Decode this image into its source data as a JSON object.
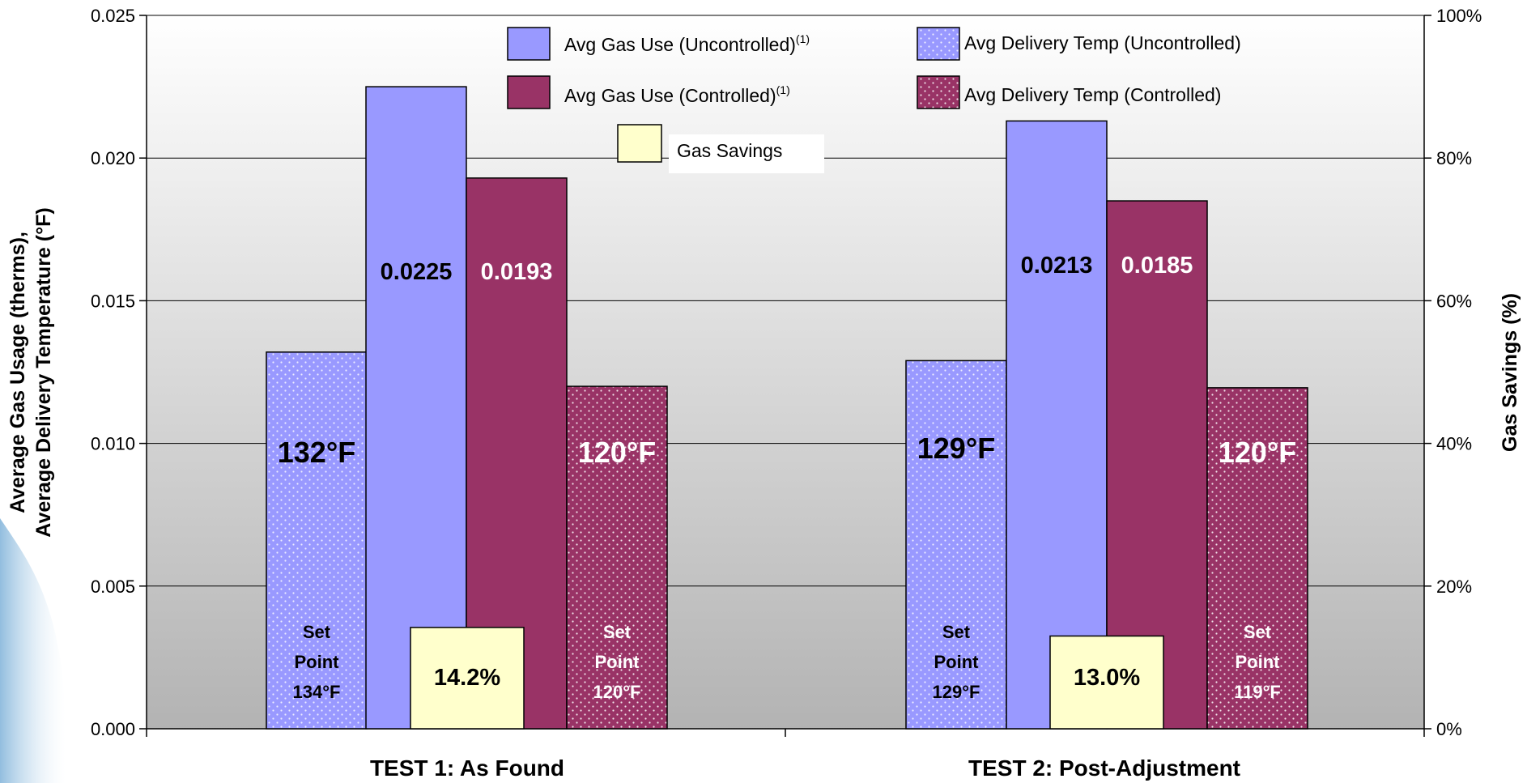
{
  "chart_data": {
    "type": "bar",
    "categories": [
      "TEST 1: As Found",
      "TEST 2: Post-Adjustment"
    ],
    "ylabel_line1": "Average Gas Usage (therms),",
    "ylabel_line2": "Average Delivery Temperature (°F)",
    "y2label": "Gas Savings (%)",
    "ylim": [
      0,
      0.025
    ],
    "y2lim": [
      0,
      100
    ],
    "yticks": [
      "0.000",
      "0.005",
      "0.010",
      "0.015",
      "0.020",
      "0.025"
    ],
    "y2ticks": [
      "0%",
      "20%",
      "40%",
      "60%",
      "80%",
      "100%"
    ],
    "series": [
      {
        "name": "Avg Delivery Temp (Uncontrolled)",
        "axis": "left",
        "values": [
          0.0132,
          0.0129
        ],
        "labels": [
          "132°F",
          "129°F"
        ],
        "set_points": [
          [
            "Set",
            "Point",
            "134°F"
          ],
          [
            "Set",
            "Point",
            "129°F"
          ]
        ]
      },
      {
        "name": "Avg Gas Use (Uncontrolled)",
        "name_sup": "(1)",
        "axis": "left",
        "values": [
          0.0225,
          0.0213
        ],
        "labels": [
          "0.0225",
          "0.0213"
        ]
      },
      {
        "name": "Avg Gas Use (Controlled)",
        "name_sup": "(1)",
        "axis": "left",
        "values": [
          0.0193,
          0.0185
        ],
        "labels": [
          "0.0193",
          "0.0185"
        ]
      },
      {
        "name": "Avg Delivery Temp (Controlled)",
        "axis": "left",
        "values": [
          0.012,
          0.01195
        ],
        "labels": [
          "120°F",
          "120°F"
        ],
        "set_points": [
          [
            "Set",
            "Point",
            "120°F"
          ],
          [
            "Set",
            "Point",
            "119°F"
          ]
        ]
      },
      {
        "name": "Gas Savings",
        "axis": "right",
        "values": [
          14.2,
          13.0
        ],
        "labels": [
          "14.2%",
          "13.0%"
        ]
      }
    ],
    "grid": true,
    "legend_position": "top"
  },
  "colors": {
    "uncontrolled": "#9999ff",
    "controlled": "#993366",
    "savings": "#ffffcc",
    "plot_top": "#ffffff",
    "plot_bottom": "#b3b3b3",
    "gridline": "#000000"
  }
}
